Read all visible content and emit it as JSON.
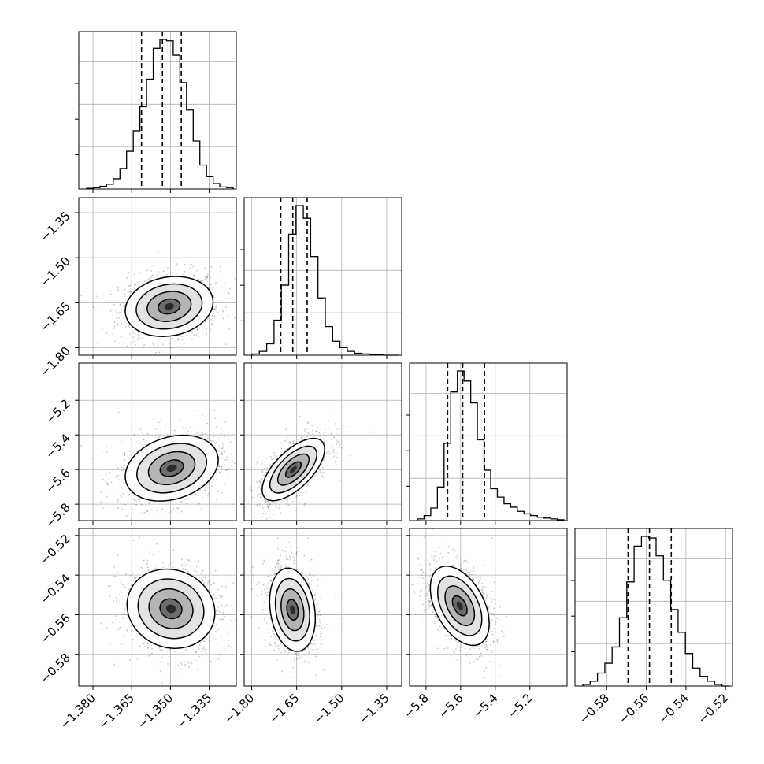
{
  "chart_data": {
    "type": "corner",
    "title": "",
    "parameters": [
      {
        "label": "",
        "range": [
          -1.3855,
          -1.3245
        ],
        "ticks": [
          -1.38,
          -1.365,
          -1.35,
          -1.335
        ],
        "tick_labels": [
          "−1.380",
          "−1.365",
          "−1.350",
          "−1.335"
        ],
        "quantiles": [
          -1.3612,
          -1.3531,
          -1.3458
        ],
        "hist": [
          1,
          2,
          4,
          7,
          15,
          30,
          55,
          85,
          120,
          160,
          205,
          218,
          216,
          195,
          155,
          115,
          70,
          35,
          18,
          8,
          3,
          2
        ]
      },
      {
        "label": "",
        "range": [
          -1.825,
          -1.3
        ],
        "ticks": [
          -1.8,
          -1.65,
          -1.5,
          -1.35
        ],
        "tick_labels": [
          "−1.80",
          "−1.65",
          "−1.50",
          "−1.35"
        ],
        "quantiles": [
          -1.703,
          -1.663,
          -1.615
        ],
        "hist": [
          2,
          6,
          18,
          55,
          110,
          190,
          235,
          215,
          155,
          90,
          45,
          22,
          12,
          6,
          3,
          2,
          1,
          1,
          0,
          0
        ]
      },
      {
        "label": "",
        "range": [
          -5.895,
          -4.985
        ],
        "ticks": [
          -5.8,
          -5.6,
          -5.4,
          -5.2
        ],
        "tick_labels": [
          "−5.8",
          "−5.6",
          "−5.4",
          "−5.2"
        ],
        "quantiles": [
          -5.675,
          -5.588,
          -5.462
        ],
        "hist": [
          2,
          6,
          15,
          40,
          92,
          153,
          178,
          166,
          140,
          96,
          60,
          38,
          28,
          20,
          16,
          11,
          8,
          6,
          4,
          3,
          2,
          1
        ]
      },
      {
        "label": "",
        "range": [
          -0.596,
          -0.5165
        ],
        "ticks": [
          -0.58,
          -0.56,
          -0.54,
          -0.52
        ],
        "tick_labels": [
          "−0.58",
          "−0.56",
          "−0.54",
          "−0.52"
        ],
        "quantiles": [
          -0.5692,
          -0.5584,
          -0.5474
        ],
        "hist": [
          1,
          3,
          8,
          14,
          24,
          42,
          64,
          86,
          92,
          91,
          80,
          65,
          47,
          33,
          20,
          11,
          6,
          3,
          1,
          0
        ]
      }
    ],
    "pairs": [
      {
        "row": 1,
        "col": 0,
        "center": [
          -1.3505,
          -1.6625
        ],
        "sigma": [
          0.0085,
          0.05
        ],
        "rho": 0.15
      },
      {
        "row": 2,
        "col": 0,
        "center": [
          -1.3495,
          -5.592
        ],
        "sigma": [
          0.009,
          0.095
        ],
        "rho": 0.25
      },
      {
        "row": 2,
        "col": 1,
        "center": [
          -1.661,
          -5.6
        ],
        "sigma": [
          0.052,
          0.09
        ],
        "rho": 0.65
      },
      {
        "row": 3,
        "col": 0,
        "center": [
          -1.3498,
          -0.557
        ],
        "sigma": [
          0.0085,
          0.01
        ],
        "rho": -0.1
      },
      {
        "row": 3,
        "col": 1,
        "center": [
          -1.664,
          -0.5575
        ],
        "sigma": [
          0.038,
          0.0105
        ],
        "rho": -0.2
      },
      {
        "row": 3,
        "col": 2,
        "center": [
          -5.605,
          -0.5555
        ],
        "sigma": [
          0.085,
          0.01
        ],
        "rho": -0.45
      }
    ],
    "contour_levels_sigma": [
      0.5,
      1.0,
      1.5,
      2.0
    ],
    "grid": true,
    "quantile_line_style": "dashed"
  }
}
